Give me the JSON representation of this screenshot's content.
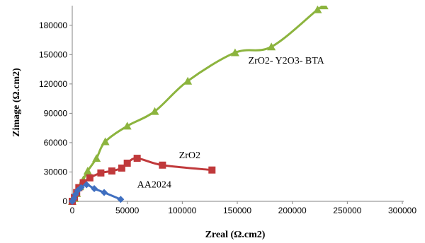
{
  "chart_data": {
    "type": "scatter",
    "title": "",
    "xlabel": "Zreal (Ω.cm2)",
    "ylabel": "Zimage (Ω.cm2)",
    "xlim": [
      0,
      300000
    ],
    "ylim": [
      0,
      195000
    ],
    "x_ticks": [
      "0",
      "50000",
      "100000",
      "150000",
      "200000",
      "250000",
      "300000"
    ],
    "y_ticks": [
      "0",
      "30000",
      "60000",
      "90000",
      "120000",
      "150000",
      "180000"
    ],
    "grid": false,
    "legend": "none",
    "series": [
      {
        "name": "ZrO2- Y2O3- BTA",
        "color": "#8cb43e",
        "marker": "triangle",
        "points": [
          [
            0,
            0
          ],
          [
            2000,
            3000
          ],
          [
            4000,
            8000
          ],
          [
            7000,
            15000
          ],
          [
            10000,
            22000
          ],
          [
            14000,
            31000
          ],
          [
            22000,
            44000
          ],
          [
            30000,
            61000
          ],
          [
            50000,
            77000
          ],
          [
            75000,
            92000
          ],
          [
            105000,
            123000
          ],
          [
            148000,
            152000
          ],
          [
            181000,
            158000
          ],
          [
            223000,
            196000
          ],
          [
            229000,
            200000
          ]
        ],
        "label_pos": [
          160000,
          141000
        ]
      },
      {
        "name": "ZrO2",
        "color": "#c0393b",
        "marker": "square",
        "points": [
          [
            0,
            0
          ],
          [
            2000,
            4000
          ],
          [
            4000,
            9000
          ],
          [
            6000,
            14000
          ],
          [
            10000,
            19000
          ],
          [
            16000,
            24000
          ],
          [
            26000,
            29000
          ],
          [
            36000,
            31000
          ],
          [
            45000,
            34000
          ],
          [
            50000,
            39000
          ],
          [
            59000,
            44000
          ],
          [
            82000,
            37000
          ],
          [
            127000,
            32000
          ]
        ],
        "label_pos": [
          97000,
          44000
        ]
      },
      {
        "name": "AA2024",
        "color": "#3f6fc0",
        "marker": "diamond",
        "points": [
          [
            0,
            0
          ],
          [
            1500,
            3000
          ],
          [
            3000,
            7000
          ],
          [
            5000,
            11000
          ],
          [
            8000,
            14000
          ],
          [
            13000,
            17000
          ],
          [
            20000,
            13000
          ],
          [
            29000,
            9000
          ],
          [
            44000,
            2000
          ]
        ],
        "label_pos": [
          59000,
          14000
        ]
      }
    ]
  }
}
